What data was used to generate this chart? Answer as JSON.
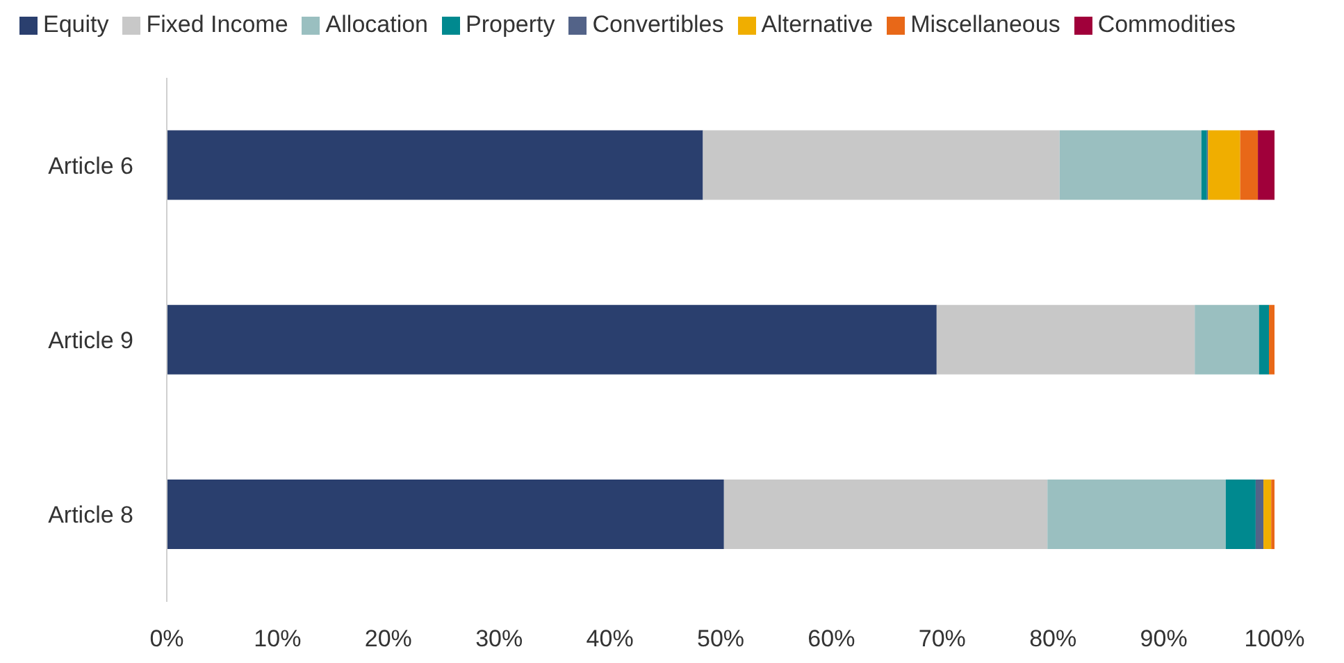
{
  "chart_data": {
    "type": "bar",
    "orientation": "horizontal",
    "stacked": true,
    "categories": [
      "Article 6",
      "Article 9",
      "Article 8"
    ],
    "series": [
      {
        "name": "Equity",
        "color": "#2a3f6e",
        "values": [
          48.4,
          69.5,
          50.3
        ]
      },
      {
        "name": "Fixed Income",
        "color": "#c8c8c8",
        "values": [
          32.2,
          23.3,
          29.2
        ]
      },
      {
        "name": "Allocation",
        "color": "#9abfc0",
        "values": [
          12.8,
          5.8,
          16.1
        ]
      },
      {
        "name": "Property",
        "color": "#00898f",
        "values": [
          0.5,
          0.9,
          2.7
        ]
      },
      {
        "name": "Convertibles",
        "color": "#536388",
        "values": [
          0.1,
          0,
          0.7
        ]
      },
      {
        "name": "Alternative",
        "color": "#f0ae00",
        "values": [
          2.9,
          0,
          0.7
        ]
      },
      {
        "name": "Miscellaneous",
        "color": "#e86818",
        "values": [
          1.6,
          0.5,
          0.3
        ]
      },
      {
        "name": "Commodities",
        "color": "#a0003a",
        "values": [
          1.5,
          0,
          0
        ]
      }
    ],
    "xlim": [
      0,
      100
    ],
    "xticks": [
      {
        "value": 0,
        "label": "0%"
      },
      {
        "value": 10,
        "label": "10%"
      },
      {
        "value": 20,
        "label": "20%"
      },
      {
        "value": 30,
        "label": "30%"
      },
      {
        "value": 40,
        "label": "40%"
      },
      {
        "value": 50,
        "label": "50%"
      },
      {
        "value": 60,
        "label": "60%"
      },
      {
        "value": 70,
        "label": "70%"
      },
      {
        "value": 80,
        "label": "80%"
      },
      {
        "value": 90,
        "label": "90%"
      },
      {
        "value": 100,
        "label": "100%"
      }
    ],
    "grid": false,
    "legend": "top"
  }
}
